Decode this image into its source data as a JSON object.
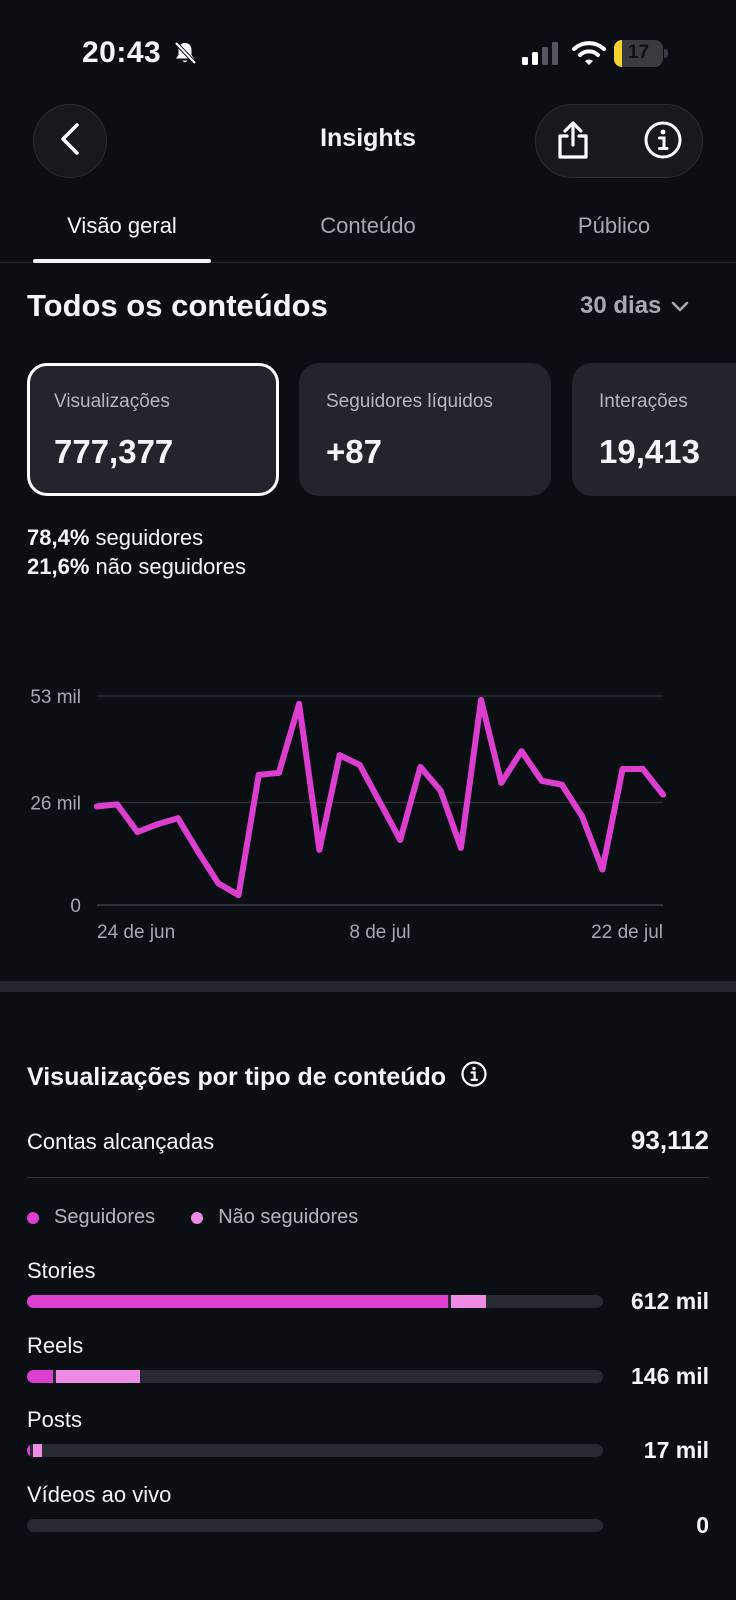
{
  "status_bar": {
    "time": "20:43",
    "battery": "17",
    "battery_level": 0.17,
    "icons": [
      "bell-slash-icon",
      "cellular-signal-icon",
      "wifi-icon",
      "battery-charging-icon"
    ]
  },
  "header": {
    "title": "Insights",
    "back_icon": "chevron-left-icon",
    "share_icon": "share-icon",
    "info_icon": "info-icon"
  },
  "tabs": [
    {
      "label": "Visão geral",
      "active": true
    },
    {
      "label": "Conteúdo",
      "active": false
    },
    {
      "label": "Público",
      "active": false
    }
  ],
  "overview": {
    "title": "Todos os conteúdos",
    "period": "30 dias",
    "metrics": [
      {
        "label": "Visualizações",
        "value": "777,377",
        "selected": true
      },
      {
        "label": "Seguidores líquidos",
        "value": "+87",
        "selected": false
      },
      {
        "label": "Interações",
        "value": "19,413",
        "selected": false
      }
    ],
    "followers_pct": "78,4%",
    "followers_text": "seguidores",
    "non_followers_pct": "21,6%",
    "non_followers_text": "não seguidores"
  },
  "chart_data": {
    "type": "line",
    "title": "",
    "xlabel": "",
    "ylabel": "",
    "x_tick_labels": [
      "24 de jun",
      "8 de jul",
      "22 de jul"
    ],
    "y_tick_labels": [
      "0",
      "26 mil",
      "53 mil"
    ],
    "ylim": [
      0,
      53000
    ],
    "grid": true,
    "series": [
      {
        "color": "#dc3fd0",
        "values": [
          25000,
          25500,
          18500,
          20500,
          22000,
          13500,
          5500,
          2500,
          33000,
          33500,
          51000,
          14000,
          38000,
          35500,
          26000,
          16500,
          35000,
          29000,
          14500,
          52000,
          31000,
          39000,
          31500,
          30500,
          22500,
          9000,
          34500,
          34500,
          28000
        ]
      }
    ]
  },
  "content_type": {
    "title": "Visualizações por tipo de conteúdo",
    "info_icon": "info-icon",
    "reach_label": "Contas alcançadas",
    "reach_value": "93,112",
    "legend": [
      {
        "label": "Seguidores",
        "color": "#dc3fd0"
      },
      {
        "label": "Não seguidores",
        "color": "#ee8be4"
      }
    ],
    "track_color": "#272a31",
    "rows": [
      {
        "label": "Stories",
        "value": "612 mil",
        "followers_fraction": 0.731,
        "non_followers_fraction": 0.061
      },
      {
        "label": "Reels",
        "value": "146 mil",
        "followers_fraction": 0.045,
        "non_followers_fraction": 0.146
      },
      {
        "label": "Posts",
        "value": "17 mil",
        "followers_fraction": 0.006,
        "non_followers_fraction": 0.015
      },
      {
        "label": "Vídeos ao vivo",
        "value": "0",
        "followers_fraction": 0,
        "non_followers_fraction": 0
      }
    ]
  }
}
